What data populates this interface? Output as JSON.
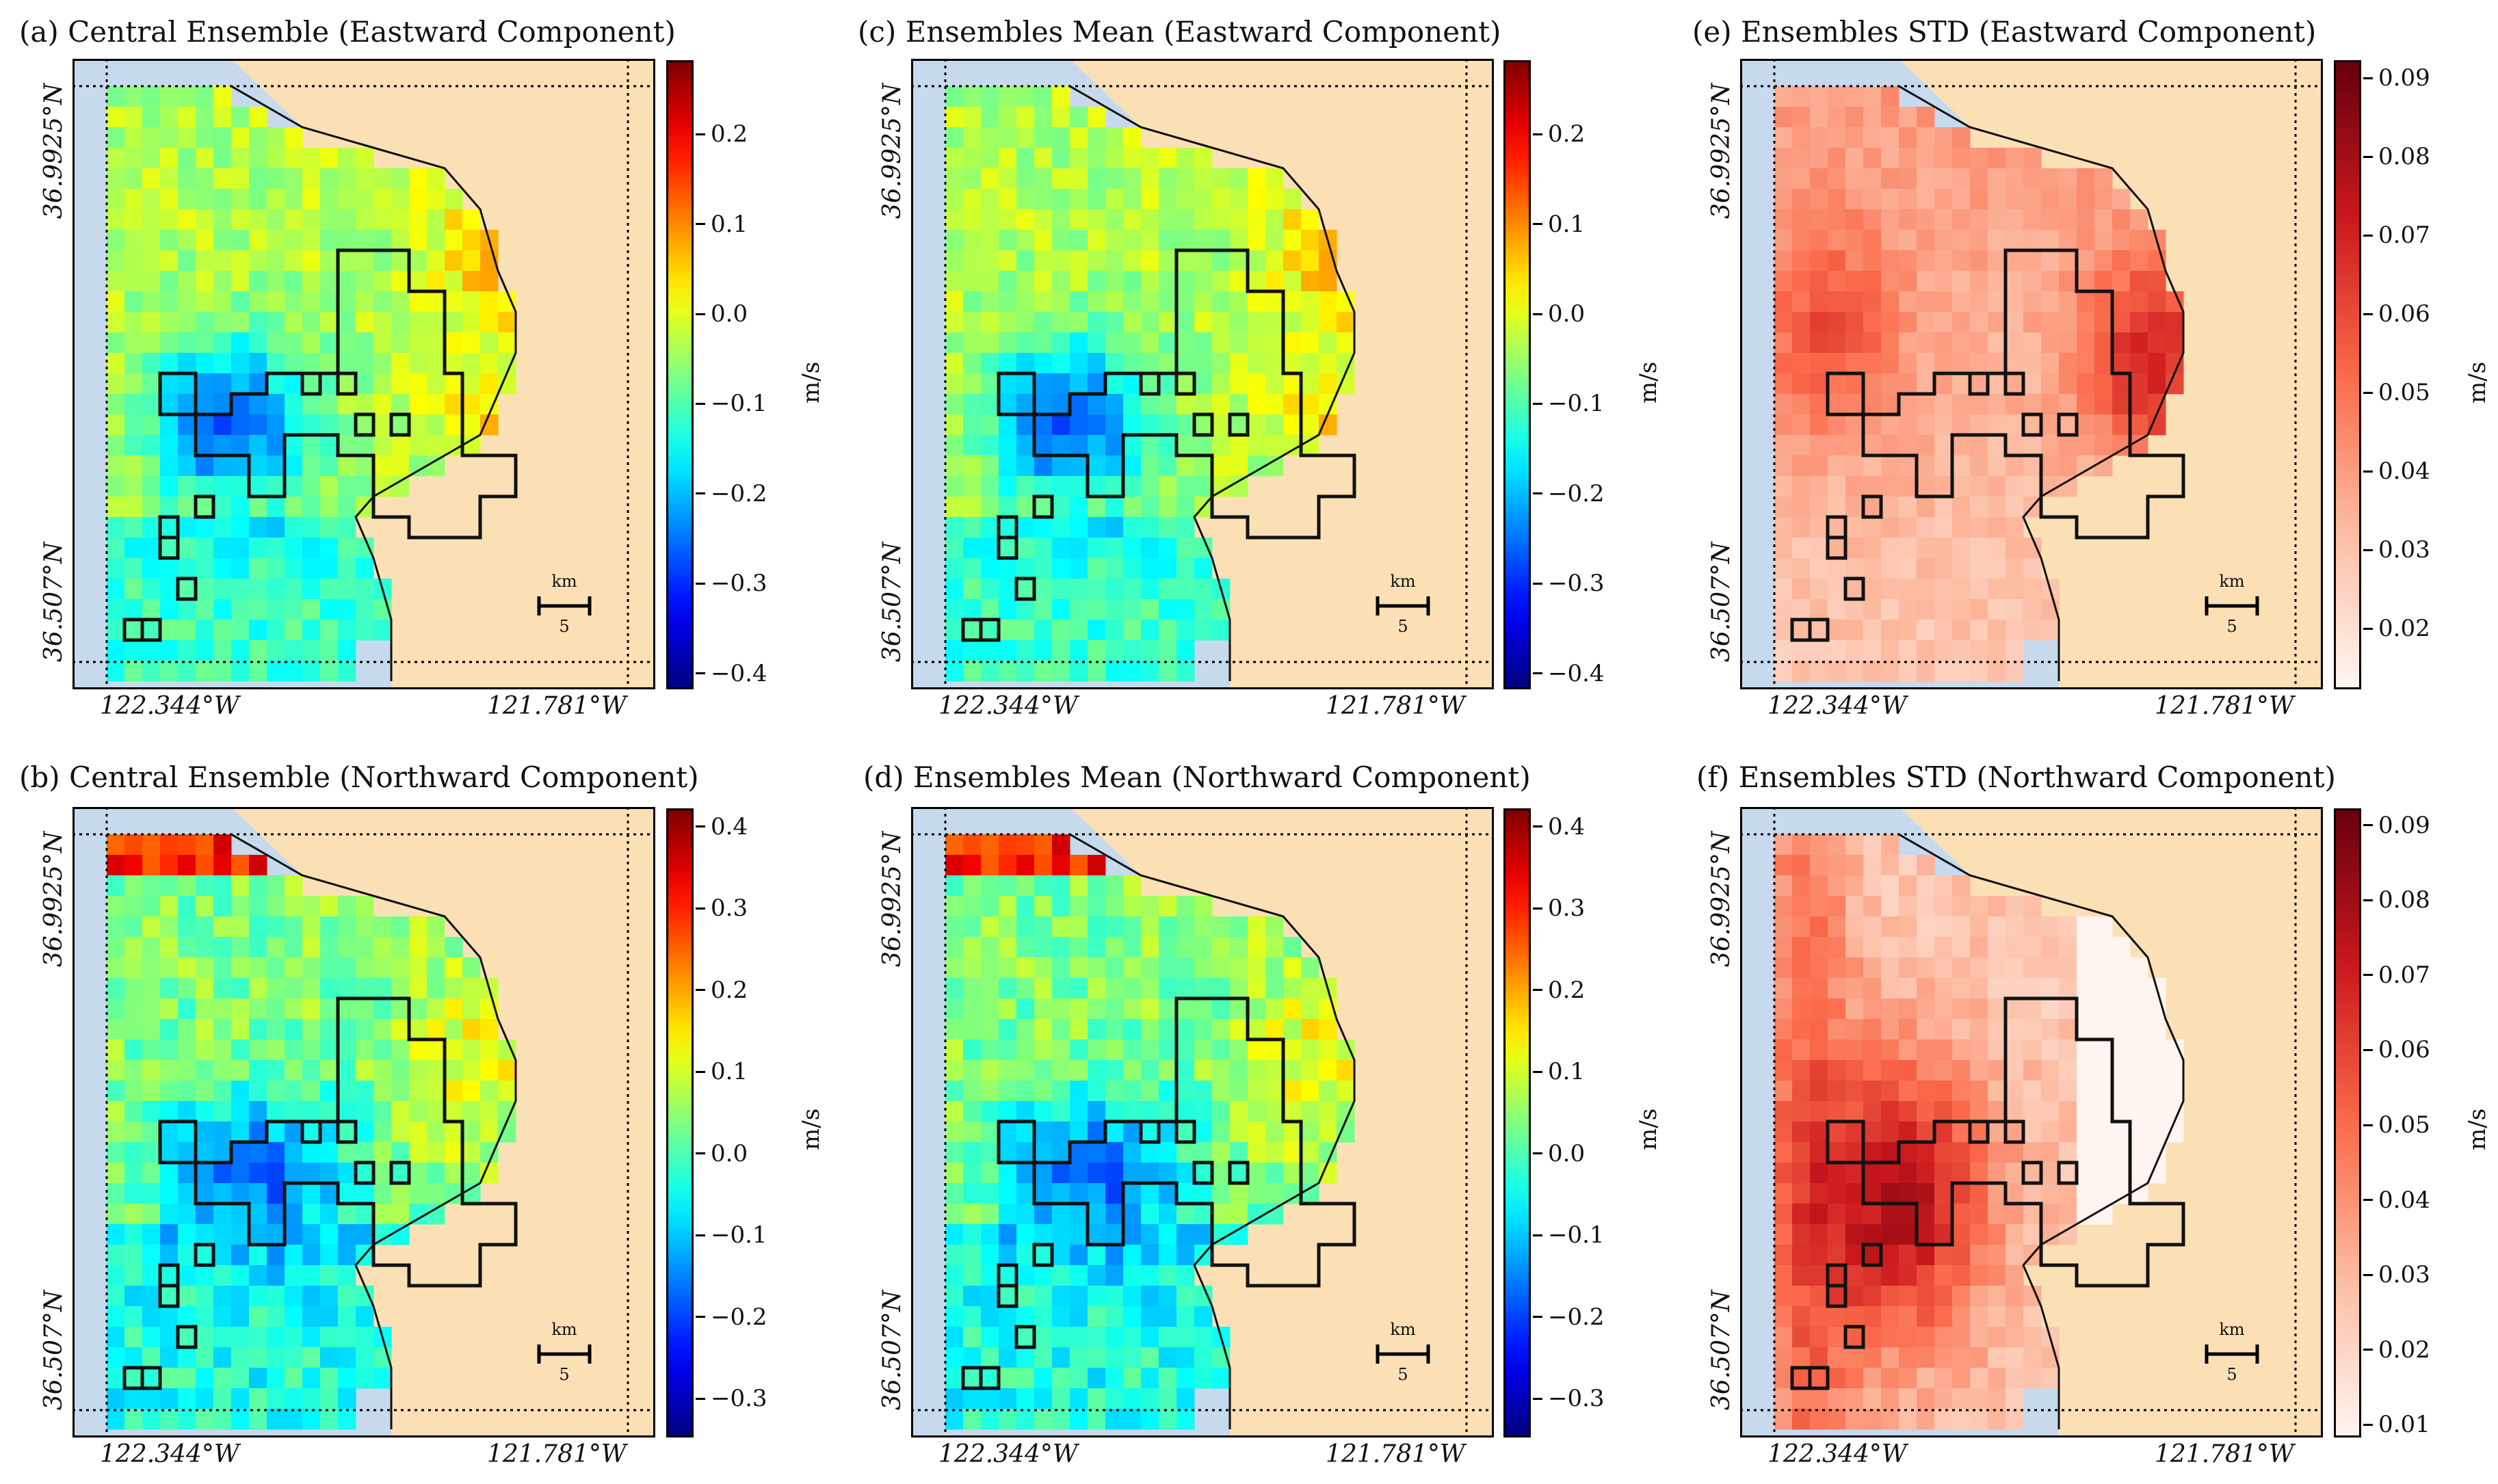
{
  "colors": {
    "land": "#fbe0b6",
    "water": "#c7d9ec",
    "outline": "#111111"
  },
  "panels": [
    {
      "id": "a",
      "title": "(a) Central Ensemble (Eastward Component)",
      "colormap": "jet",
      "lat_labels": [
        "36.9925°N",
        "36.507°N"
      ],
      "lon_labels": [
        "122.344°W",
        "121.781°W"
      ],
      "colorbar": {
        "ticks": [
          "0.2",
          "0.1",
          "0.0",
          "−0.1",
          "−0.2",
          "−0.3",
          "−0.4"
        ],
        "unit": "m/s",
        "min": -0.42,
        "max": 0.28
      },
      "scalebar": {
        "unit": "km",
        "length": "5"
      }
    },
    {
      "id": "c",
      "title": "(c) Ensembles Mean (Eastward Component)",
      "colormap": "jet",
      "lat_labels": [
        "36.9925°N",
        "36.507°N"
      ],
      "lon_labels": [
        "122.344°W",
        "121.781°W"
      ],
      "colorbar": {
        "ticks": [
          "0.2",
          "0.1",
          "0.0",
          "−0.1",
          "−0.2",
          "−0.3",
          "−0.4"
        ],
        "unit": "m/s",
        "min": -0.42,
        "max": 0.28
      },
      "scalebar": {
        "unit": "km",
        "length": "5"
      }
    },
    {
      "id": "e",
      "title": "(e) Ensembles STD (Eastward Component)",
      "colormap": "reds",
      "lat_labels": [
        "36.9925°N",
        "36.507°N"
      ],
      "lon_labels": [
        "122.344°W",
        "121.781°W"
      ],
      "colorbar": {
        "ticks": [
          "0.09",
          "0.08",
          "0.07",
          "0.06",
          "0.05",
          "0.04",
          "0.03",
          "0.02"
        ],
        "unit": "m/s",
        "min": 0.012,
        "max": 0.092
      },
      "scalebar": {
        "unit": "km",
        "length": "5"
      }
    },
    {
      "id": "b",
      "title": "(b) Central Ensemble (Northward Component)",
      "colormap": "jet",
      "lat_labels": [
        "36.9925°N",
        "36.507°N"
      ],
      "lon_labels": [
        "122.344°W",
        "121.781°W"
      ],
      "colorbar": {
        "ticks": [
          "0.4",
          "0.3",
          "0.2",
          "0.1",
          "0.0",
          "−0.1",
          "−0.2",
          "−0.3"
        ],
        "unit": "m/s",
        "min": -0.35,
        "max": 0.42
      },
      "scalebar": {
        "unit": "km",
        "length": "5"
      }
    },
    {
      "id": "d",
      "title": "(d) Ensembles Mean (Northward Component)",
      "colormap": "jet",
      "lat_labels": [
        "36.9925°N",
        "36.507°N"
      ],
      "lon_labels": [
        "122.344°W",
        "121.781°W"
      ],
      "colorbar": {
        "ticks": [
          "0.4",
          "0.3",
          "0.2",
          "0.1",
          "0.0",
          "−0.1",
          "−0.2",
          "−0.3"
        ],
        "unit": "m/s",
        "min": -0.35,
        "max": 0.42
      },
      "scalebar": {
        "unit": "km",
        "length": "5"
      }
    },
    {
      "id": "f",
      "title": "(f) Ensembles STD (Northward Component)",
      "colormap": "reds",
      "lat_labels": [
        "36.9925°N",
        "36.507°N"
      ],
      "lon_labels": [
        "122.344°W",
        "121.781°W"
      ],
      "colorbar": {
        "ticks": [
          "0.09",
          "0.08",
          "0.07",
          "0.06",
          "0.05",
          "0.04",
          "0.03",
          "0.02",
          "0.01"
        ],
        "unit": "m/s",
        "min": 0.008,
        "max": 0.092
      },
      "scalebar": {
        "unit": "km",
        "length": "5"
      }
    }
  ]
}
